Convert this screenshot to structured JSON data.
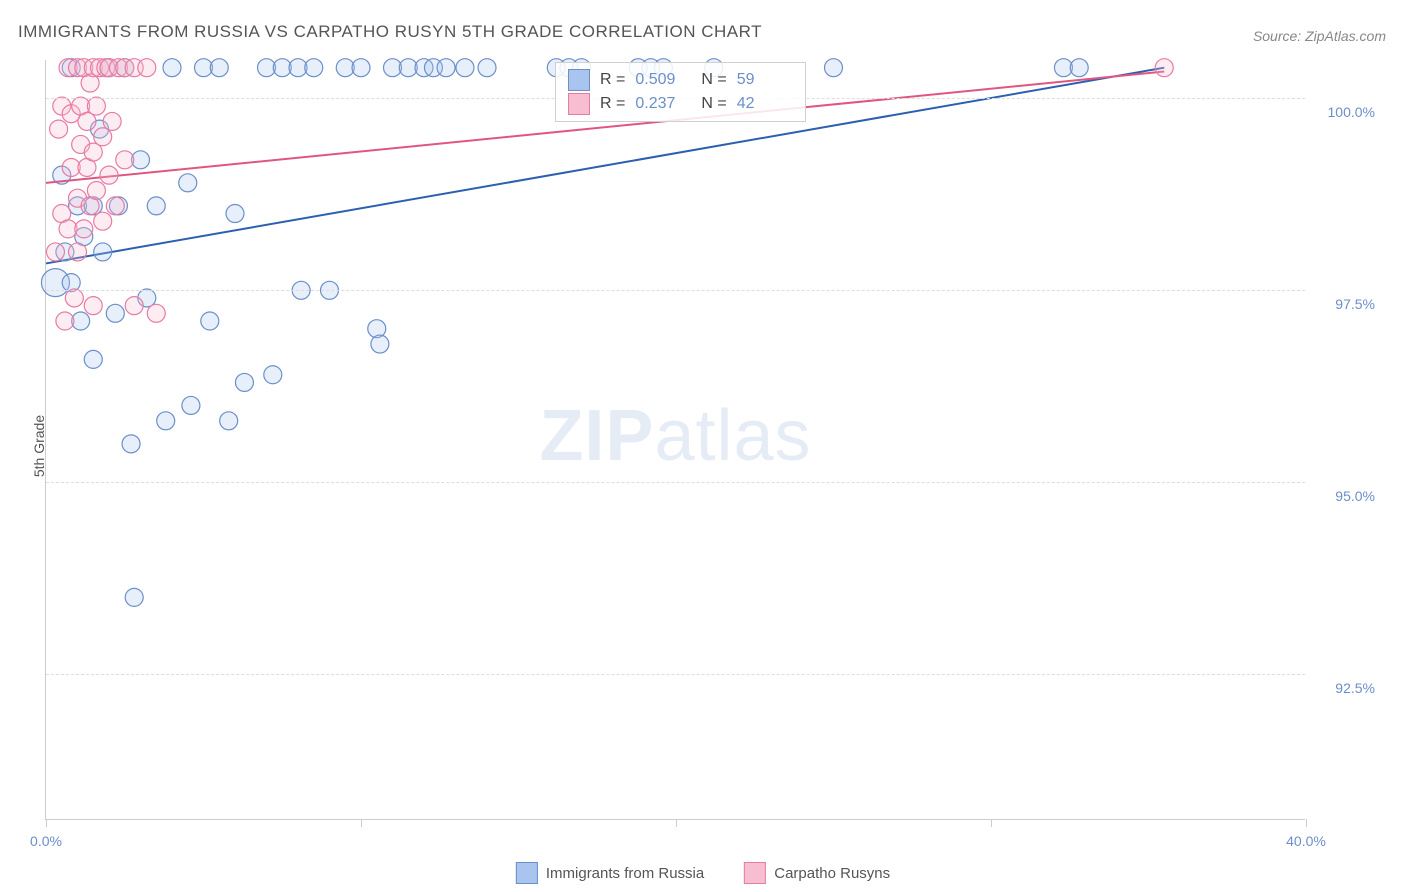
{
  "title": "IMMIGRANTS FROM RUSSIA VS CARPATHO RUSYN 5TH GRADE CORRELATION CHART",
  "source": "Source: ZipAtlas.com",
  "y_axis_label": "5th Grade",
  "watermark_bold": "ZIP",
  "watermark_rest": "atlas",
  "chart": {
    "type": "scatter",
    "xlim": [
      0.0,
      40.0
    ],
    "ylim": [
      90.6,
      100.5
    ],
    "x_ticks": [
      0.0,
      10.0,
      20.0,
      30.0,
      40.0
    ],
    "x_tick_labels": [
      "0.0%",
      "",
      "",
      "",
      "40.0%"
    ],
    "y_gridlines": [
      92.5,
      95.0,
      97.5,
      100.0
    ],
    "y_tick_labels": [
      "92.5%",
      "95.0%",
      "97.5%",
      "100.0%"
    ],
    "background_color": "#ffffff",
    "grid_color": "#dddddd",
    "axis_color": "#cccccc",
    "label_color": "#6b8fc9",
    "marker_radius": 9,
    "marker_stroke_width": 1.2,
    "marker_fill_opacity": 0.28,
    "line_width": 2,
    "series": [
      {
        "name": "Immigrants from Russia",
        "color_fill": "#a9c5ef",
        "color_stroke": "#6b8fc9",
        "line_color": "#2d5fb0",
        "R": "0.509",
        "N": "59",
        "trend_line": {
          "x1": 0.0,
          "y1": 97.85,
          "x2": 35.5,
          "y2": 100.4
        },
        "points": [
          {
            "x": 0.3,
            "y": 97.6,
            "r": 14
          },
          {
            "x": 0.5,
            "y": 99.0
          },
          {
            "x": 0.6,
            "y": 98.0
          },
          {
            "x": 0.8,
            "y": 100.4
          },
          {
            "x": 0.8,
            "y": 97.6
          },
          {
            "x": 1.0,
            "y": 98.6
          },
          {
            "x": 1.1,
            "y": 97.1
          },
          {
            "x": 1.2,
            "y": 98.2
          },
          {
            "x": 1.5,
            "y": 98.6
          },
          {
            "x": 1.5,
            "y": 96.6
          },
          {
            "x": 1.7,
            "y": 99.6
          },
          {
            "x": 1.8,
            "y": 98.0
          },
          {
            "x": 2.0,
            "y": 100.4
          },
          {
            "x": 2.2,
            "y": 97.2
          },
          {
            "x": 2.3,
            "y": 98.6
          },
          {
            "x": 2.5,
            "y": 100.4
          },
          {
            "x": 2.7,
            "y": 95.5
          },
          {
            "x": 2.8,
            "y": 93.5
          },
          {
            "x": 3.0,
            "y": 99.2
          },
          {
            "x": 3.2,
            "y": 97.4
          },
          {
            "x": 3.5,
            "y": 98.6
          },
          {
            "x": 3.8,
            "y": 95.8
          },
          {
            "x": 4.0,
            "y": 100.4
          },
          {
            "x": 4.5,
            "y": 98.9
          },
          {
            "x": 4.6,
            "y": 96.0
          },
          {
            "x": 5.0,
            "y": 100.4
          },
          {
            "x": 5.2,
            "y": 97.1
          },
          {
            "x": 5.5,
            "y": 100.4
          },
          {
            "x": 5.8,
            "y": 95.8
          },
          {
            "x": 6.0,
            "y": 98.5
          },
          {
            "x": 6.3,
            "y": 96.3
          },
          {
            "x": 7.0,
            "y": 100.4
          },
          {
            "x": 7.2,
            "y": 96.4
          },
          {
            "x": 7.5,
            "y": 100.4
          },
          {
            "x": 8.0,
            "y": 100.4
          },
          {
            "x": 8.1,
            "y": 97.5
          },
          {
            "x": 8.5,
            "y": 100.4
          },
          {
            "x": 9.0,
            "y": 97.5
          },
          {
            "x": 9.5,
            "y": 100.4
          },
          {
            "x": 10.0,
            "y": 100.4
          },
          {
            "x": 10.5,
            "y": 97.0
          },
          {
            "x": 10.6,
            "y": 96.8
          },
          {
            "x": 11.0,
            "y": 100.4
          },
          {
            "x": 11.5,
            "y": 100.4
          },
          {
            "x": 12.0,
            "y": 100.4
          },
          {
            "x": 12.3,
            "y": 100.4
          },
          {
            "x": 12.7,
            "y": 100.4
          },
          {
            "x": 13.3,
            "y": 100.4
          },
          {
            "x": 14.0,
            "y": 100.4
          },
          {
            "x": 16.2,
            "y": 100.4
          },
          {
            "x": 16.6,
            "y": 100.4
          },
          {
            "x": 17.0,
            "y": 100.4
          },
          {
            "x": 18.8,
            "y": 100.4
          },
          {
            "x": 19.2,
            "y": 100.4
          },
          {
            "x": 19.6,
            "y": 100.4
          },
          {
            "x": 21.2,
            "y": 100.4
          },
          {
            "x": 25.0,
            "y": 100.4
          },
          {
            "x": 32.3,
            "y": 100.4
          },
          {
            "x": 32.8,
            "y": 100.4
          }
        ]
      },
      {
        "name": "Carpatho Rusyns",
        "color_fill": "#f7bdd0",
        "color_stroke": "#e77ba4",
        "line_color": "#e0567f",
        "R": "0.237",
        "N": "42",
        "trend_line": {
          "x1": 0.0,
          "y1": 98.9,
          "x2": 35.5,
          "y2": 100.35
        },
        "points": [
          {
            "x": 0.3,
            "y": 98.0
          },
          {
            "x": 0.4,
            "y": 99.6
          },
          {
            "x": 0.5,
            "y": 98.5
          },
          {
            "x": 0.5,
            "y": 99.9
          },
          {
            "x": 0.6,
            "y": 97.1
          },
          {
            "x": 0.7,
            "y": 98.3
          },
          {
            "x": 0.7,
            "y": 100.4
          },
          {
            "x": 0.8,
            "y": 99.1
          },
          {
            "x": 0.8,
            "y": 99.8
          },
          {
            "x": 0.9,
            "y": 97.4
          },
          {
            "x": 1.0,
            "y": 98.7
          },
          {
            "x": 1.0,
            "y": 98.0
          },
          {
            "x": 1.0,
            "y": 100.4
          },
          {
            "x": 1.1,
            "y": 99.4
          },
          {
            "x": 1.1,
            "y": 99.9
          },
          {
            "x": 1.2,
            "y": 98.3
          },
          {
            "x": 1.2,
            "y": 100.4
          },
          {
            "x": 1.3,
            "y": 99.1
          },
          {
            "x": 1.3,
            "y": 99.7
          },
          {
            "x": 1.4,
            "y": 98.6
          },
          {
            "x": 1.4,
            "y": 100.2
          },
          {
            "x": 1.5,
            "y": 97.3
          },
          {
            "x": 1.5,
            "y": 99.3
          },
          {
            "x": 1.5,
            "y": 100.4
          },
          {
            "x": 1.6,
            "y": 98.8
          },
          {
            "x": 1.6,
            "y": 99.9
          },
          {
            "x": 1.7,
            "y": 100.4
          },
          {
            "x": 1.8,
            "y": 99.5
          },
          {
            "x": 1.8,
            "y": 98.4
          },
          {
            "x": 1.9,
            "y": 100.4
          },
          {
            "x": 2.0,
            "y": 99.0
          },
          {
            "x": 2.0,
            "y": 100.4
          },
          {
            "x": 2.1,
            "y": 99.7
          },
          {
            "x": 2.2,
            "y": 98.6
          },
          {
            "x": 2.3,
            "y": 100.4
          },
          {
            "x": 2.5,
            "y": 99.2
          },
          {
            "x": 2.5,
            "y": 100.4
          },
          {
            "x": 2.8,
            "y": 97.3
          },
          {
            "x": 2.8,
            "y": 100.4
          },
          {
            "x": 3.2,
            "y": 100.4
          },
          {
            "x": 3.5,
            "y": 97.2
          },
          {
            "x": 35.5,
            "y": 100.4
          }
        ]
      }
    ]
  },
  "legend_bottom": [
    {
      "label": "Immigrants from Russia",
      "fill": "#a9c5ef",
      "stroke": "#6b8fc9"
    },
    {
      "label": "Carpatho Rusyns",
      "fill": "#f7bdd0",
      "stroke": "#e77ba4"
    }
  ]
}
